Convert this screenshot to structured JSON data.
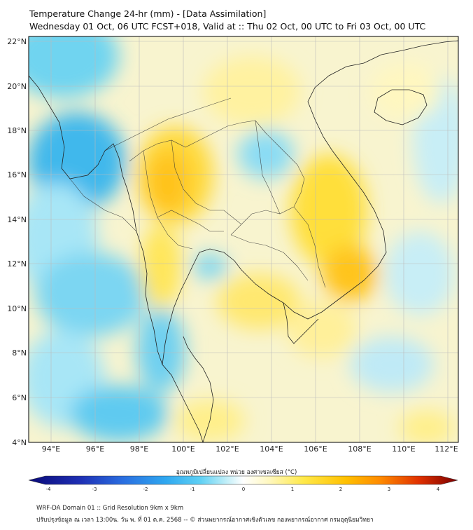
{
  "header": {
    "title": "Temperature Change 24-hr (mm) - [Data Assimilation]",
    "subtitle": "Wednesday 01 Oct, 06 UTC FCST+018, Valid at :: Thu 02 Oct, 00 UTC to Fri 03 Oct, 00 UTC"
  },
  "map": {
    "lat_labels": [
      "22°N",
      "20°N",
      "18°N",
      "16°N",
      "14°N",
      "12°N",
      "10°N",
      "8°N",
      "6°N",
      "4°N"
    ],
    "lon_labels": [
      "94°E",
      "96°E",
      "98°E",
      "100°E",
      "102°E",
      "104°E",
      "106°E",
      "108°E",
      "110°E",
      "112°E"
    ],
    "lat_range": [
      4,
      22.2
    ],
    "lon_range": [
      93.1,
      112.5
    ]
  },
  "colorbar": {
    "title": "อุณหภูมิเปลี่ยนแปลง หน่วย องศาเซลเซียส (°C)",
    "ticks": [
      "-4",
      "-3",
      "-2",
      "-1",
      "0",
      "1",
      "2",
      "3",
      "4"
    ],
    "range": [
      -4,
      4
    ],
    "colors": [
      "#0a0a78",
      "#1e2fb4",
      "#2a6ee0",
      "#2fa8f0",
      "#5fd0f4",
      "#bfeef8",
      "#ffffff",
      "#fff8c0",
      "#ffe94a",
      "#ffc000",
      "#ff8a00",
      "#e03000",
      "#7a0000"
    ]
  },
  "footer": {
    "line1": "WRF-DA Domain 01 :: Grid Resolution 9km x 9km",
    "line2": "ปรับปรุงข้อมูล ณ เวลา 13:00น. วัน พ. ที่ 01 ต.ค. 2568 -- © ส่วนพยากรณ์อากาศเชิงตัวเลข กองพยากรณ์อากาศ กรมอุตุนิยมวิทยา"
  }
}
